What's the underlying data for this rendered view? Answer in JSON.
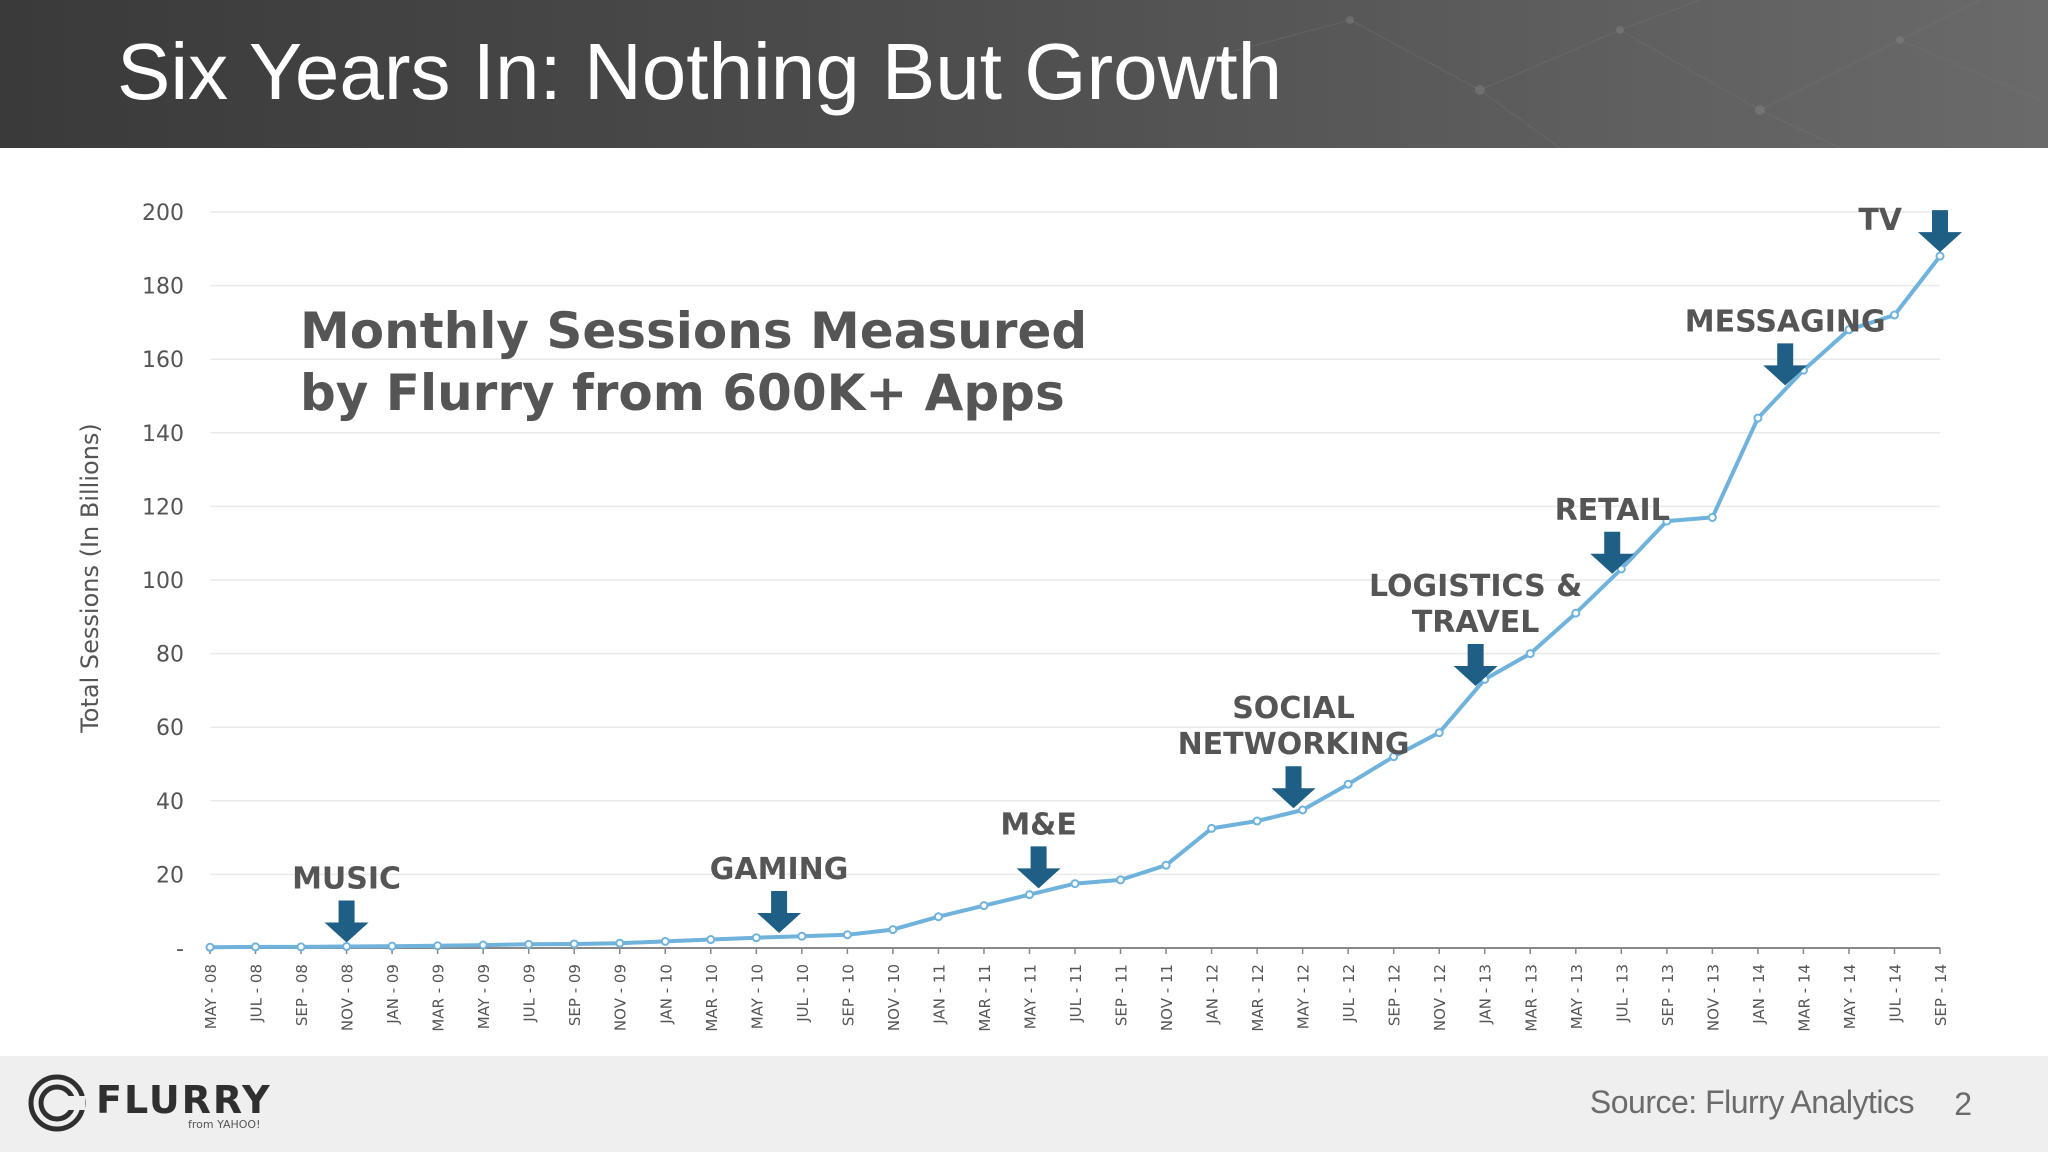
{
  "slide": {
    "title": "Six Years In: Nothing But Growth",
    "source": "Source: Flurry Analytics",
    "page_number": "2"
  },
  "logo": {
    "wordmark": "FLURRY",
    "sub": "from YAHOO!"
  },
  "colors": {
    "line": "#6fb2dc",
    "arrow": "#1f5f85",
    "text": "#555555",
    "grid": "#eaeaea",
    "axis": "#888888"
  },
  "chart_data": {
    "type": "line",
    "title": "Monthly Sessions Measured by Flurry from 600K+ Apps",
    "title_lines": [
      "Monthly Sessions Measured",
      "by Flurry from 600K+ Apps"
    ],
    "xlabel": "",
    "ylabel": "Total Sessions (In Billions)",
    "ylim": [
      0,
      200
    ],
    "y_ticks": [
      {
        "value": 0,
        "label": "-"
      },
      {
        "value": 20,
        "label": "20"
      },
      {
        "value": 40,
        "label": "40"
      },
      {
        "value": 60,
        "label": "60"
      },
      {
        "value": 80,
        "label": "80"
      },
      {
        "value": 100,
        "label": "100"
      },
      {
        "value": 120,
        "label": "120"
      },
      {
        "value": 140,
        "label": "140"
      },
      {
        "value": 160,
        "label": "160"
      },
      {
        "value": 180,
        "label": "180"
      },
      {
        "value": 200,
        "label": "200"
      }
    ],
    "grid": true,
    "categories": [
      "MAY - 08",
      "JUL - 08",
      "SEP - 08",
      "NOV - 08",
      "JAN - 09",
      "MAR - 09",
      "MAY - 09",
      "JUL - 09",
      "SEP - 09",
      "NOV - 09",
      "JAN - 10",
      "MAR - 10",
      "MAY - 10",
      "JUL - 10",
      "SEP - 10",
      "NOV - 10",
      "JAN - 11",
      "MAR - 11",
      "MAY - 11",
      "JUL - 11",
      "SEP - 11",
      "NOV - 11",
      "JAN - 12",
      "MAR - 12",
      "MAY - 12",
      "JUL - 12",
      "SEP - 12",
      "NOV - 12",
      "JAN - 13",
      "MAR - 13",
      "MAY - 13",
      "JUL - 13",
      "SEP - 13",
      "NOV - 13",
      "JAN - 14",
      "MAR - 14",
      "MAY - 14",
      "JUL - 14",
      "SEP - 14"
    ],
    "series": [
      {
        "name": "Monthly Sessions",
        "values": [
          0.2,
          0.3,
          0.3,
          0.4,
          0.5,
          0.6,
          0.8,
          1.0,
          1.1,
          1.3,
          1.8,
          2.3,
          2.8,
          3.2,
          3.6,
          5.0,
          8.5,
          11.5,
          14.5,
          17.5,
          18.5,
          22.5,
          32.5,
          34.5,
          37.5,
          44.5,
          52.0,
          58.5,
          73.0,
          80.0,
          91.0,
          103.0,
          116.0,
          117.0,
          144.0,
          157.0,
          168.0,
          172.0,
          188.0
        ]
      }
    ],
    "annotations": [
      {
        "lines": [
          "MUSIC"
        ],
        "index": 3
      },
      {
        "lines": [
          "GAMING"
        ],
        "index": 12.5
      },
      {
        "lines": [
          "M&E"
        ],
        "index": 18.2
      },
      {
        "lines": [
          "SOCIAL",
          "NETWORKING"
        ],
        "index": 23.8
      },
      {
        "lines": [
          "LOGISTICS &",
          "TRAVEL"
        ],
        "index": 27.8
      },
      {
        "lines": [
          "RETAIL"
        ],
        "index": 30.8
      },
      {
        "lines": [
          "MESSAGING"
        ],
        "index": 34.6
      },
      {
        "lines": [
          "TV"
        ],
        "index": 38
      }
    ]
  }
}
